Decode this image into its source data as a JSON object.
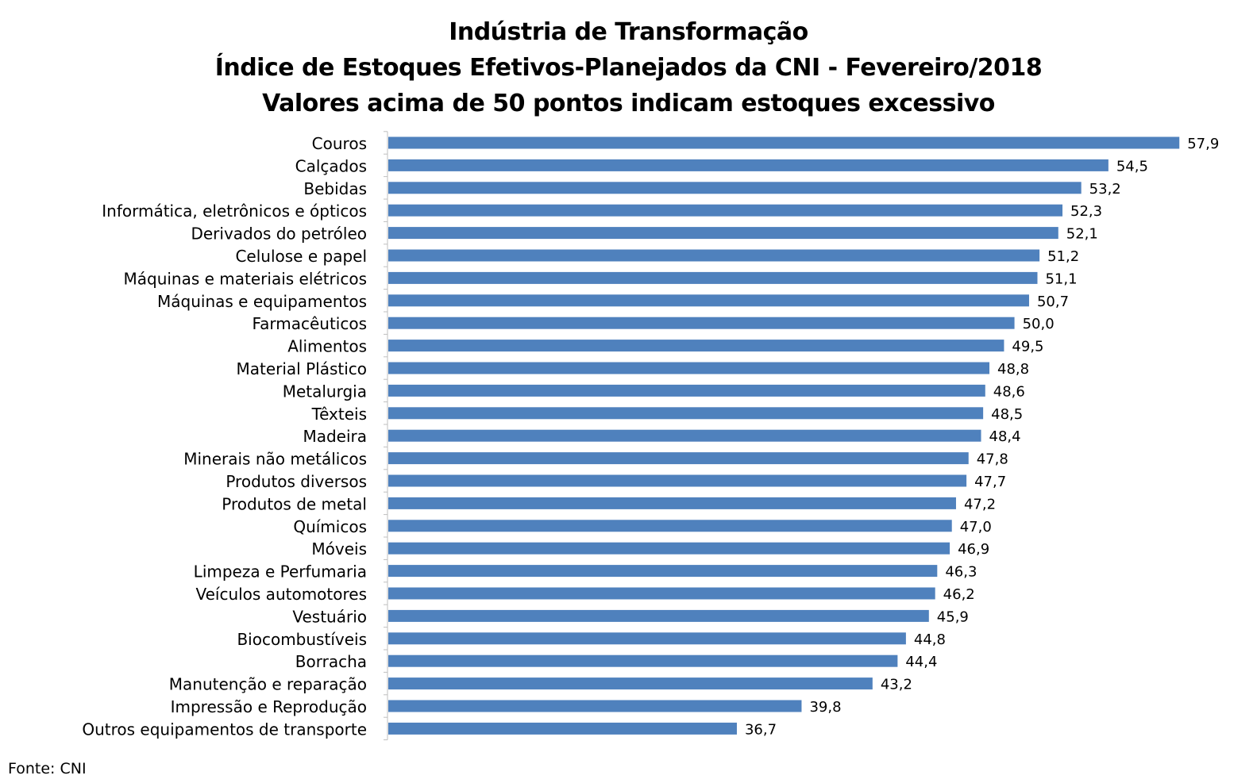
{
  "chart_data": {
    "type": "bar",
    "orientation": "horizontal",
    "title_lines": [
      "Indústria de Transformação",
      "Índice de Estoques Efetivos-Planejados da CNI - Fevereiro/2018",
      "Valores acima de 50 pontos indicam estoques excessivo"
    ],
    "categories": [
      "Couros",
      "Calçados",
      "Bebidas",
      "Informática, eletrônicos e ópticos",
      "Derivados do petróleo",
      "Celulose e papel",
      "Máquinas e materiais elétricos",
      "Máquinas e equipamentos",
      "Farmacêuticos",
      "Alimentos",
      "Material Plástico",
      "Metalurgia",
      "Têxteis",
      "Madeira",
      "Minerais não metálicos",
      "Produtos diversos",
      "Produtos de metal",
      "Químicos",
      "Móveis",
      "Limpeza e Perfumaria",
      "Veículos automotores",
      "Vestuário",
      "Biocombustíveis",
      "Borracha",
      "Manutenção e reparação",
      "Impressão e Reprodução",
      "Outros equipamentos de transporte"
    ],
    "values": [
      57.9,
      54.5,
      53.2,
      52.3,
      52.1,
      51.2,
      51.1,
      50.7,
      50.0,
      49.5,
      48.8,
      48.6,
      48.5,
      48.4,
      47.8,
      47.7,
      47.2,
      47.0,
      46.9,
      46.3,
      46.2,
      45.9,
      44.8,
      44.4,
      43.2,
      39.8,
      36.7
    ],
    "data_labels": [
      "57,9",
      "54,5",
      "53,2",
      "52,3",
      "52,1",
      "51,2",
      "51,1",
      "50,7",
      "50,0",
      "49,5",
      "48,8",
      "48,6",
      "48,5",
      "48,4",
      "47,8",
      "47,7",
      "47,2",
      "47,0",
      "46,9",
      "46,3",
      "46,2",
      "45,9",
      "44,8",
      "44,4",
      "43,2",
      "39,8",
      "36,7"
    ],
    "xlim": [
      20,
      58.5
    ],
    "grid": false,
    "legend": false,
    "bar_color": "#4f81bd"
  },
  "source_note": "Fonte: CNI"
}
